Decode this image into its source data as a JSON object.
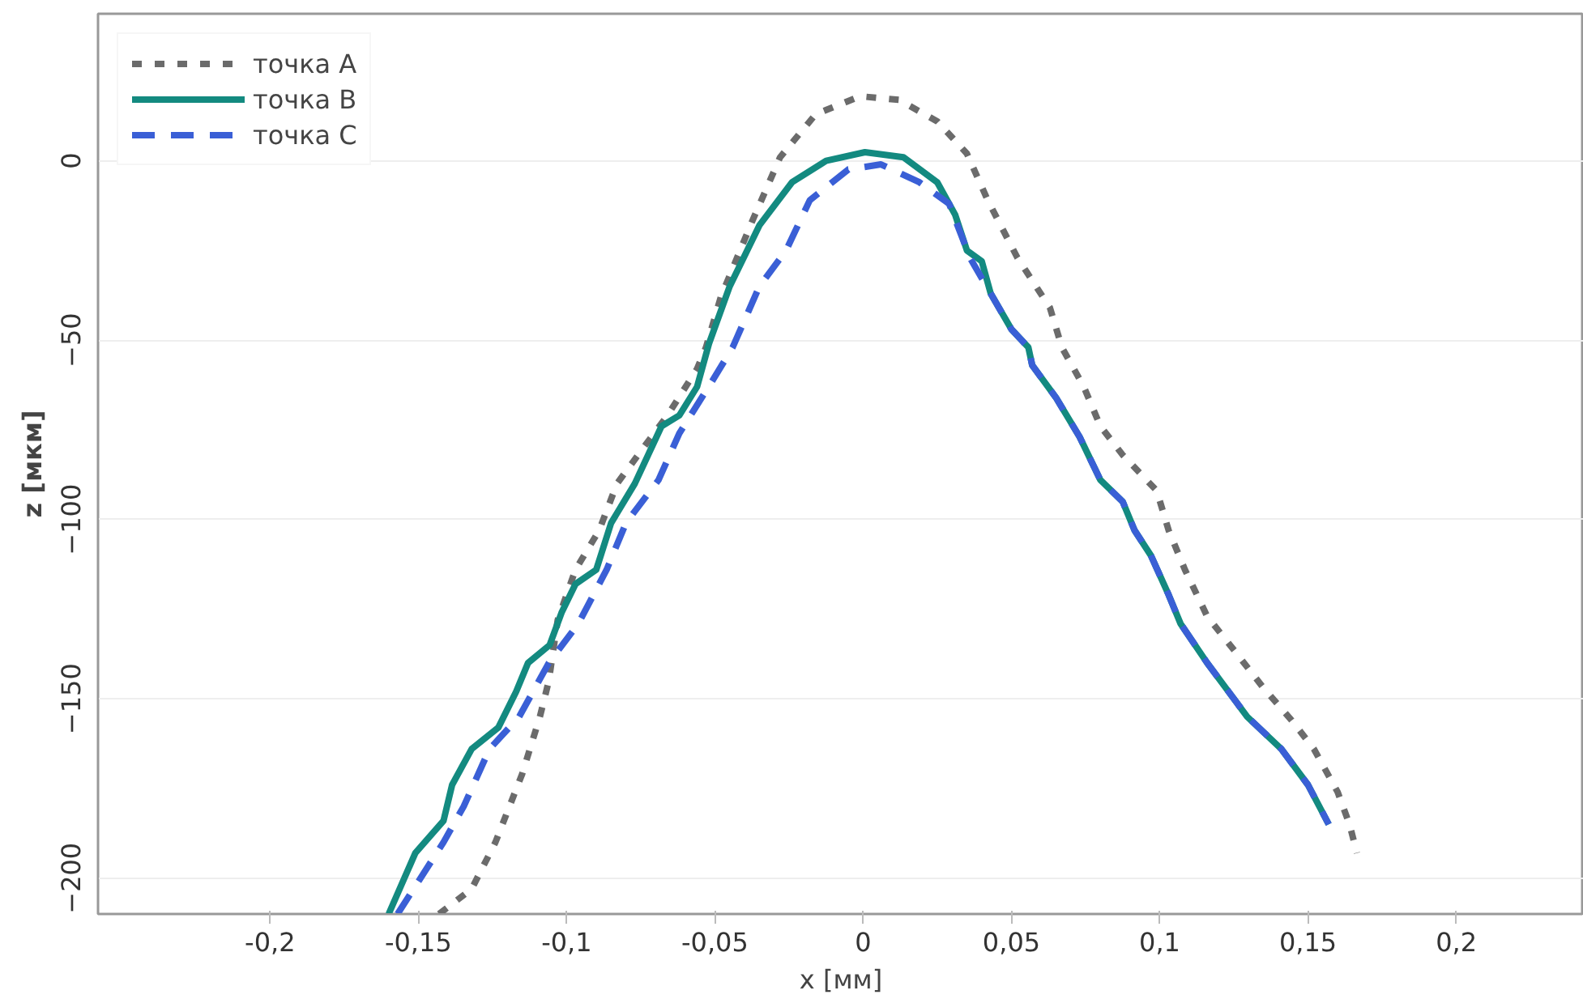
{
  "chart_data": {
    "type": "line",
    "xlabel": "x [мм]",
    "ylabel": "z [мкм]",
    "xlim": [
      -0.258,
      0.243
    ],
    "ylim": [
      -210,
      41
    ],
    "xticks": [
      {
        "value": -0.2,
        "label": "-0,2"
      },
      {
        "value": -0.15,
        "label": "-0,15"
      },
      {
        "value": -0.1,
        "label": "-0,1"
      },
      {
        "value": -0.05,
        "label": "-0,05"
      },
      0,
      {
        "value": 0.05,
        "label": "0,05"
      },
      {
        "value": 0.1,
        "label": "0,1"
      },
      {
        "value": 0.15,
        "label": "0,15"
      },
      {
        "value": 0.2,
        "label": "0,2"
      }
    ],
    "yticks": [
      0,
      -50,
      -100,
      -150,
      -200
    ],
    "grid": "y",
    "legend": "top left",
    "marker": "none",
    "series": [
      {
        "name": "точка A",
        "color": "#6b6b6b",
        "line_style": "dotted",
        "x": [
          -0.143,
          -0.132,
          -0.124,
          -0.115,
          -0.109,
          -0.106,
          -0.103,
          -0.097,
          -0.089,
          -0.083,
          -0.075,
          -0.066,
          -0.056,
          -0.053,
          -0.048,
          -0.0375,
          -0.028,
          -0.016,
          -0.001,
          0.012,
          0.025,
          0.035,
          0.042,
          0.052,
          0.063,
          0.067,
          0.0744,
          0.08,
          0.0875,
          0.099,
          0.103,
          0.1085,
          0.116,
          0.1256,
          0.135,
          0.1445,
          0.152,
          0.16,
          0.164,
          0.1665
        ],
        "values": [
          -210,
          -203,
          -190,
          -171,
          -155,
          -145,
          -128,
          -114,
          -103,
          -90,
          -81,
          -71,
          -58,
          -52,
          -38,
          -17,
          1,
          13,
          18,
          17,
          11,
          2,
          -11,
          -27,
          -41,
          -52,
          -63,
          -74,
          -82,
          -92,
          -103,
          -114,
          -127,
          -137,
          -147,
          -156,
          -164,
          -176,
          -185,
          -193
        ]
      },
      {
        "name": "точка B",
        "color": "#138a80",
        "line_style": "solid",
        "x": [
          -0.16,
          -0.151,
          -0.1415,
          -0.1386,
          -0.132,
          -0.123,
          -0.117,
          -0.113,
          -0.1057,
          -0.1017,
          -0.097,
          -0.09,
          -0.085,
          -0.077,
          -0.068,
          -0.062,
          -0.056,
          -0.052,
          -0.045,
          -0.035,
          -0.024,
          -0.0125,
          0.0006,
          0.0136,
          0.025,
          0.031,
          0.035,
          0.04,
          0.043,
          0.05,
          0.0557,
          0.057,
          0.065,
          0.073,
          0.08,
          0.0875,
          0.0915,
          0.097,
          0.103,
          0.107,
          0.116,
          0.1295,
          0.141,
          0.15,
          0.157
        ],
        "values": [
          -210,
          -193,
          -184,
          -174,
          -164,
          -158,
          -148,
          -140,
          -135,
          -126,
          -118,
          -114,
          -101,
          -90,
          -74,
          -71,
          -63,
          -51,
          -35,
          -18,
          -6,
          0,
          2.4,
          1,
          -6,
          -15,
          -25,
          -28,
          -37,
          -47,
          -52,
          -57,
          -66,
          -77,
          -89,
          -95,
          -103,
          -110,
          -121,
          -129,
          -140,
          -155,
          -164,
          -174,
          -185
        ]
      },
      {
        "name": "точка C",
        "color": "#3a5fd6",
        "line_style": "dashed",
        "x": [
          -0.157,
          -0.1415,
          -0.1347,
          -0.126,
          -0.116,
          -0.106,
          -0.096,
          -0.0865,
          -0.08,
          -0.069,
          -0.062,
          -0.0506,
          -0.044,
          -0.035,
          -0.026,
          -0.018,
          -0.005,
          0.006,
          0.019,
          0.029,
          0.036,
          0.043,
          0.05,
          0.0557,
          0.057,
          0.065,
          0.073,
          0.08,
          0.0875,
          0.0915,
          0.097,
          0.103,
          0.107,
          0.116,
          0.1295,
          0.141,
          0.15,
          0.157
        ],
        "values": [
          -210,
          -190,
          -180,
          -164,
          -155,
          -140,
          -129,
          -114,
          -101,
          -89,
          -76,
          -61,
          -52,
          -35,
          -25,
          -11,
          -2.4,
          -1,
          -6,
          -12,
          -27,
          -37,
          -47,
          -52,
          -57,
          -66,
          -77,
          -89,
          -95,
          -103,
          -110,
          -121,
          -129,
          -140,
          -155,
          -164,
          -174,
          -185
        ]
      }
    ]
  }
}
